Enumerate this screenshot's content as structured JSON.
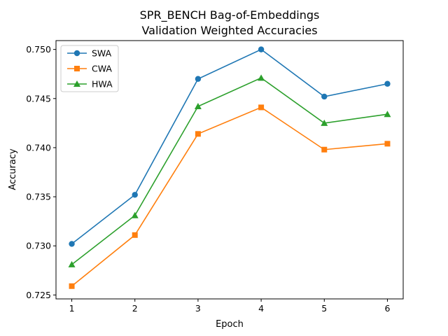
{
  "chart_data": {
    "type": "line",
    "title_line1": "SPR_BENCH Bag-of-Embeddings",
    "title_line2": "Validation Weighted Accuracies",
    "xlabel": "Epoch",
    "ylabel": "Accuracy",
    "x": [
      1,
      2,
      3,
      4,
      5,
      6
    ],
    "xticks": [
      "1",
      "2",
      "3",
      "4",
      "5",
      "6"
    ],
    "yticks": [
      "0.725",
      "0.730",
      "0.735",
      "0.740",
      "0.745",
      "0.750"
    ],
    "ytick_values": [
      0.725,
      0.73,
      0.735,
      0.74,
      0.745,
      0.75
    ],
    "xlim": [
      0.75,
      6.25
    ],
    "ylim": [
      0.7246,
      0.7509
    ],
    "grid": false,
    "legend_position": "upper-left",
    "series": [
      {
        "name": "SWA",
        "color": "#1f77b4",
        "marker": "circle",
        "values": [
          0.7302,
          0.7352,
          0.747,
          0.75,
          0.7452,
          0.7465
        ]
      },
      {
        "name": "CWA",
        "color": "#ff7f0e",
        "marker": "square",
        "values": [
          0.7259,
          0.7311,
          0.7414,
          0.7441,
          0.7398,
          0.7404
        ]
      },
      {
        "name": "HWA",
        "color": "#2ca02c",
        "marker": "triangle",
        "values": [
          0.7281,
          0.7331,
          0.7442,
          0.7471,
          0.7425,
          0.7434
        ]
      }
    ]
  }
}
